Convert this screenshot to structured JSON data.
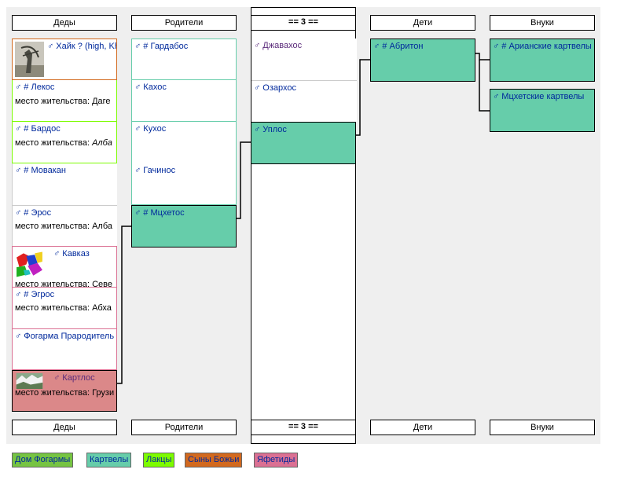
{
  "columns": {
    "grandparents": "Деды",
    "parents": "Родители",
    "generation": "== 3 ==",
    "children": "Дети",
    "grandchildren": "Внуки"
  },
  "grandparents": [
    {
      "name": "♂ Хайк ? (high, Kh",
      "sub": "",
      "photo": "archer-statue"
    },
    {
      "name": "♂ # Лекос",
      "sub": "место жительства: Даге"
    },
    {
      "name": "♂ # Бардос",
      "sub_label": "место жительства: ",
      "sub_italic": "Алба"
    },
    {
      "name": "♂ # Мовакан",
      "sub": ""
    },
    {
      "name": "♂ # Эрос",
      "sub": "место жительства: Алба"
    },
    {
      "name": "♂ Кавказ",
      "sub": "место жительства: Севе",
      "photo": "colorful-map"
    },
    {
      "name": "♂ # Эгрос",
      "sub": "место жительства: Абха"
    },
    {
      "name": "♂ Фогарма Прародитель",
      "sub": ""
    },
    {
      "name": "♂ Картлос",
      "sub": "место жительства: Грузи",
      "photo": "landscape"
    }
  ],
  "parents": [
    {
      "name": "♂ # Гардабос"
    },
    {
      "name": "♂ Кахос"
    },
    {
      "name": "♂ Кухос"
    },
    {
      "name": "♂ Гачинос"
    },
    {
      "name": "♂ # Мцхетос"
    }
  ],
  "generation": [
    {
      "name": "♂ Джавахос"
    },
    {
      "name": "♂ Озархос"
    },
    {
      "name": "♂ Уплос"
    }
  ],
  "children": [
    {
      "name": "♂ # Абритон"
    }
  ],
  "grandchildren": [
    {
      "name": "♂ # Арианские картвелы"
    },
    {
      "name": "♂ Мцхетские картвелы"
    }
  ],
  "legend": [
    {
      "label": "Дом Фогармы",
      "color": "#76c442"
    },
    {
      "label": "Картвелы",
      "color": "#66cdaa"
    },
    {
      "label": "Лакцы",
      "color": "#7cfc00"
    },
    {
      "label": "Сыны Божьи",
      "color": "#d2691e"
    },
    {
      "label": "Яфетиды",
      "color": "#db7093"
    }
  ],
  "colors": {
    "highlight_green": "#66cdaa",
    "highlight_red": "#db8889"
  }
}
